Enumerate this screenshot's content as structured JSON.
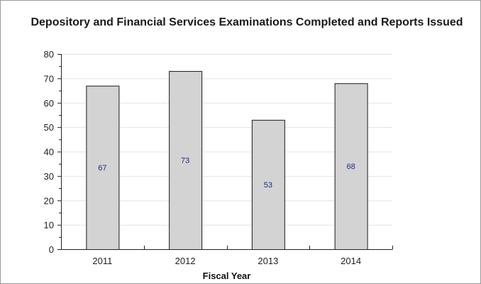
{
  "chart_data": {
    "type": "bar",
    "title": "Depository and Financial Services Examinations Completed and Reports Issued",
    "xlabel": "Fiscal Year",
    "ylabel": "",
    "categories": [
      "2011",
      "2012",
      "2013",
      "2014"
    ],
    "values": [
      67,
      73,
      53,
      68
    ],
    "data_labels": [
      "67",
      "73",
      "53",
      "68"
    ],
    "ylim": [
      0,
      80
    ],
    "yticks": [
      0,
      10,
      20,
      30,
      40,
      50,
      60,
      70,
      80
    ],
    "ytick_labels": [
      "0",
      "10",
      "20",
      "30",
      "40",
      "50",
      "60",
      "70",
      "80"
    ],
    "grid": true,
    "legend": "none",
    "colors": {
      "bar_fill": "#d3d3d3",
      "bar_stroke": "#1a1a1a",
      "grid": "#e3e3e3",
      "axis": "#222222",
      "data_label": "#1f2a8c"
    }
  }
}
